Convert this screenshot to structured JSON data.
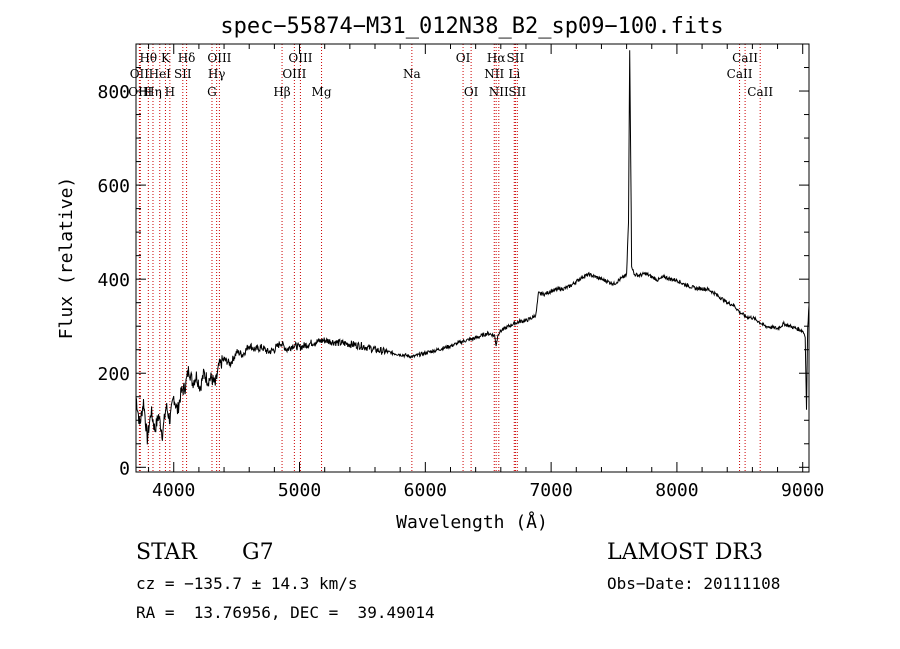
{
  "chart_data": {
    "type": "line",
    "title": "spec−55874−M31_012N38_B2_sp09−100.fits",
    "xlabel": "Wavelength (Å)",
    "ylabel": "Flux (relative)",
    "xlim": [
      3700,
      9050
    ],
    "ylim": [
      -10,
      900
    ],
    "xticks": [
      4000,
      5000,
      6000,
      7000,
      8000,
      9000
    ],
    "yticks": [
      0,
      200,
      400,
      600,
      800
    ],
    "x_minor_step": 200,
    "y_minor_step": 50,
    "series": [
      {
        "name": "flux",
        "x": [
          3700,
          3730,
          3760,
          3790,
          3820,
          3850,
          3880,
          3910,
          3940,
          3970,
          4000,
          4030,
          4060,
          4090,
          4120,
          4150,
          4180,
          4210,
          4240,
          4270,
          4300,
          4330,
          4360,
          4400,
          4450,
          4500,
          4550,
          4600,
          4650,
          4700,
          4750,
          4800,
          4850,
          4900,
          4950,
          5000,
          5100,
          5200,
          5300,
          5400,
          5500,
          5600,
          5700,
          5800,
          5900,
          6000,
          6100,
          6200,
          6300,
          6400,
          6500,
          6550,
          6563,
          6580,
          6600,
          6650,
          6700,
          6750,
          6800,
          6850,
          6880,
          6900,
          6950,
          7000,
          7050,
          7100,
          7150,
          7200,
          7250,
          7300,
          7350,
          7400,
          7450,
          7500,
          7550,
          7580,
          7600,
          7615,
          7625,
          7640,
          7660,
          7700,
          7750,
          7800,
          7850,
          7900,
          7950,
          8000,
          8050,
          8100,
          8150,
          8200,
          8250,
          8300,
          8350,
          8400,
          8450,
          8500,
          8550,
          8600,
          8650,
          8700,
          8750,
          8800,
          8850,
          8900,
          8950,
          9000,
          9020,
          9030,
          9040,
          9050
        ],
        "y": [
          150,
          90,
          140,
          60,
          120,
          80,
          110,
          70,
          130,
          100,
          150,
          120,
          160,
          170,
          210,
          180,
          195,
          170,
          200,
          185,
          190,
          175,
          215,
          230,
          220,
          245,
          240,
          260,
          250,
          255,
          245,
          250,
          265,
          250,
          260,
          255,
          265,
          270,
          265,
          262,
          258,
          250,
          245,
          240,
          235,
          243,
          250,
          258,
          268,
          275,
          285,
          280,
          260,
          285,
          290,
          298,
          305,
          310,
          312,
          318,
          325,
          370,
          368,
          375,
          378,
          380,
          385,
          395,
          405,
          410,
          405,
          400,
          395,
          390,
          400,
          405,
          410,
          520,
          890,
          430,
          410,
          408,
          412,
          405,
          398,
          405,
          400,
          398,
          390,
          385,
          380,
          380,
          378,
          370,
          360,
          350,
          345,
          330,
          320,
          318,
          310,
          300,
          298,
          295,
          305,
          300,
          295,
          290,
          280,
          120,
          300,
          345
        ]
      }
    ],
    "lines": [
      {
        "name": "Hθ",
        "x": 3798,
        "row": 1
      },
      {
        "name": "OII",
        "x": 3727,
        "row": 2
      },
      {
        "name": "OIII",
        "x": 3734,
        "row": 3
      },
      {
        "name": "Hη",
        "x": 3835,
        "row": 3
      },
      {
        "name": "K",
        "x": 3934,
        "row": 1
      },
      {
        "name": "HeI",
        "x": 3889,
        "row": 2
      },
      {
        "name": "H",
        "x": 3969,
        "row": 3
      },
      {
        "name": "Hδ",
        "x": 4102,
        "row": 1
      },
      {
        "name": "SII",
        "x": 4072,
        "row": 2
      },
      {
        "name": "OIII",
        "x": 4363,
        "row": 1
      },
      {
        "name": "Hγ",
        "x": 4341,
        "row": 2
      },
      {
        "name": "G",
        "x": 4304,
        "row": 3
      },
      {
        "name": "OIII",
        "x": 5007,
        "row": 1
      },
      {
        "name": "OIII",
        "x": 4959,
        "row": 2
      },
      {
        "name": "Hβ",
        "x": 4861,
        "row": 3
      },
      {
        "name": "Mg",
        "x": 5175,
        "row": 3
      },
      {
        "name": "Na",
        "x": 5893,
        "row": 2
      },
      {
        "name": "OI",
        "x": 6300,
        "row": 1
      },
      {
        "name": "OI",
        "x": 6364,
        "row": 3
      },
      {
        "name": "Hα",
        "x": 6563,
        "row": 1
      },
      {
        "name": "SII",
        "x": 6716,
        "row": 1
      },
      {
        "name": "NII",
        "x": 6548,
        "row": 2
      },
      {
        "name": "Li",
        "x": 6707,
        "row": 2
      },
      {
        "name": "NII",
        "x": 6584,
        "row": 3
      },
      {
        "name": "SII",
        "x": 6731,
        "row": 3
      },
      {
        "name": "CaII",
        "x": 8542,
        "row": 1
      },
      {
        "name": "CaII",
        "x": 8498,
        "row": 2
      },
      {
        "name": "CaII",
        "x": 8662,
        "row": 3
      }
    ],
    "line_color": "#cc0000"
  },
  "info": {
    "class": "STAR",
    "subclass": "G7",
    "survey": "LAMOST DR3",
    "cz": "cz = −135.7 ± 14.3 km/s",
    "obsdate": "Obs−Date: 20111108",
    "radec": "RA =  13.76956, DEC =  39.49014"
  }
}
